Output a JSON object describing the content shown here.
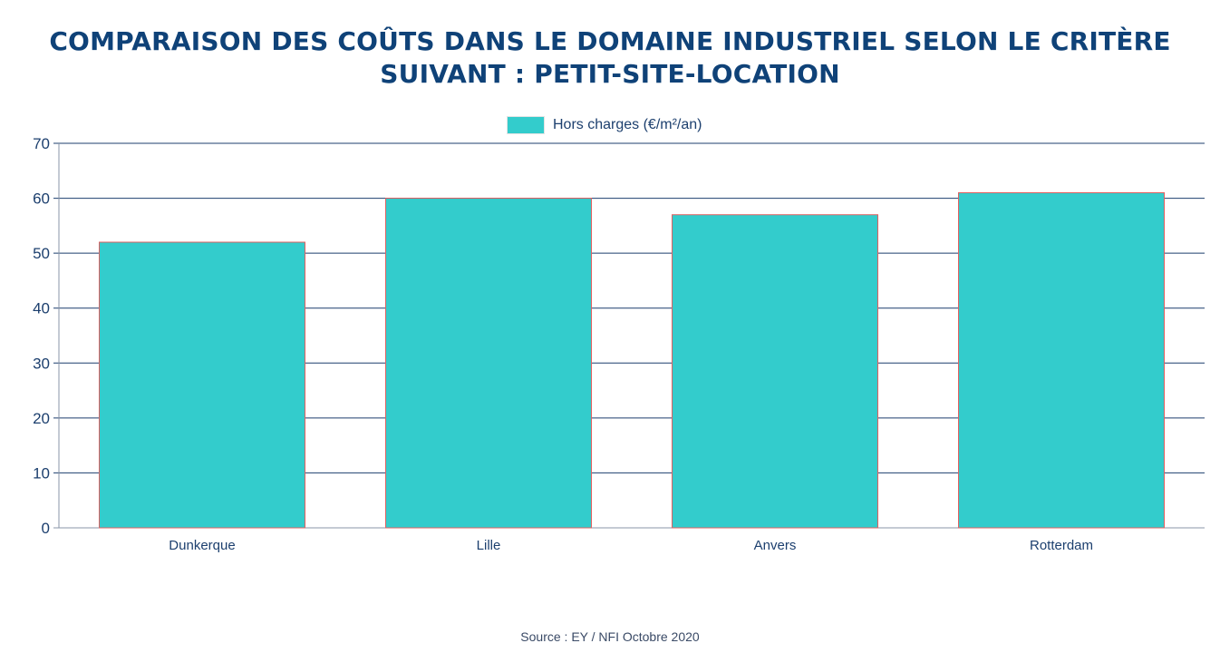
{
  "title": "COMPARAISON DES COÛTS DANS LE DOMAINE INDUSTRIEL SELON LE CRITÈRE SUIVANT : PETIT-SITE-LOCATION",
  "source": "Source : EY / NFI Octobre 2020",
  "colors": {
    "bar_fill": "#33cccc",
    "bar_stroke": "#e06060",
    "grid": "#1c3f6e",
    "axis_text": "#1c3f6e",
    "title": "#0f4278"
  },
  "chart_data": {
    "type": "bar",
    "categories": [
      "Dunkerque",
      "Lille",
      "Anvers",
      "Rotterdam"
    ],
    "series": [
      {
        "name": "Hors charges (€/m²/an)",
        "values": [
          52,
          60,
          57,
          61
        ]
      }
    ],
    "title": "COMPARAISON DES COÛTS DANS LE DOMAINE INDUSTRIEL SELON LE CRITÈRE SUIVANT : PETIT-SITE-LOCATION",
    "xlabel": "",
    "ylabel": "",
    "ylim": [
      0,
      70
    ],
    "yticks": [
      "0",
      "10",
      "20",
      "30",
      "40",
      "50",
      "60",
      "70"
    ],
    "grid": true,
    "legend_position": "top-center"
  }
}
